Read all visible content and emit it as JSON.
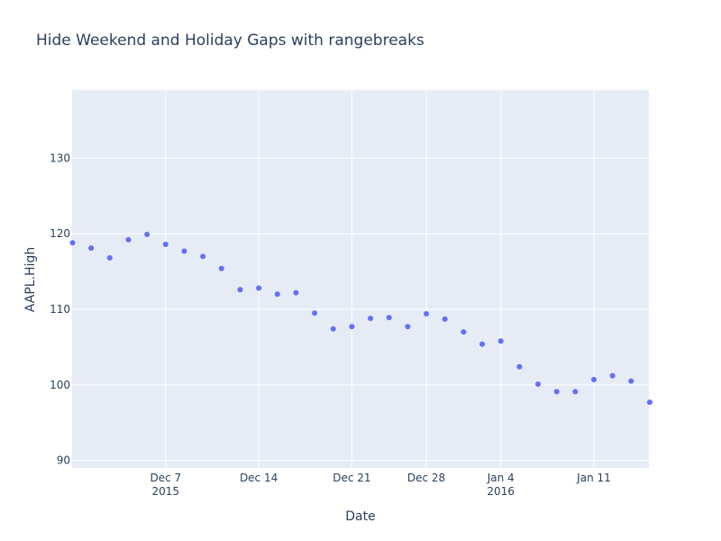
{
  "chart_data": {
    "type": "scatter",
    "title": "Hide Weekend and Holiday Gaps with rangebreaks",
    "xlabel": "Date",
    "ylabel": "AAPL.High",
    "ylim": [
      89,
      139
    ],
    "grid": true,
    "plot_bg": "#e5ecf6",
    "marker_color": "#636efa",
    "gridline_color": "#ffffff",
    "x_ticks": [
      {
        "date": "2015-12-07",
        "label": "Dec 7",
        "sublabel": "2015"
      },
      {
        "date": "2015-12-14",
        "label": "Dec 14",
        "sublabel": ""
      },
      {
        "date": "2015-12-21",
        "label": "Dec 21",
        "sublabel": ""
      },
      {
        "date": "2015-12-28",
        "label": "Dec 28",
        "sublabel": ""
      },
      {
        "date": "2016-01-04",
        "label": "Jan 4",
        "sublabel": "2016"
      },
      {
        "date": "2016-01-11",
        "label": "Jan 11",
        "sublabel": ""
      }
    ],
    "y_ticks": [
      90,
      100,
      110,
      120,
      130
    ],
    "points": [
      {
        "x": "2015-11-30",
        "y": 118.8
      },
      {
        "x": "2015-12-01",
        "y": 118.1
      },
      {
        "x": "2015-12-02",
        "y": 116.8
      },
      {
        "x": "2015-12-03",
        "y": 119.2
      },
      {
        "x": "2015-12-04",
        "y": 119.9
      },
      {
        "x": "2015-12-07",
        "y": 118.6
      },
      {
        "x": "2015-12-08",
        "y": 117.7
      },
      {
        "x": "2015-12-09",
        "y": 117.0
      },
      {
        "x": "2015-12-10",
        "y": 115.4
      },
      {
        "x": "2015-12-11",
        "y": 112.6
      },
      {
        "x": "2015-12-14",
        "y": 112.8
      },
      {
        "x": "2015-12-15",
        "y": 112.0
      },
      {
        "x": "2015-12-16",
        "y": 112.2
      },
      {
        "x": "2015-12-17",
        "y": 109.5
      },
      {
        "x": "2015-12-18",
        "y": 107.4
      },
      {
        "x": "2015-12-21",
        "y": 107.7
      },
      {
        "x": "2015-12-22",
        "y": 108.8
      },
      {
        "x": "2015-12-23",
        "y": 108.9
      },
      {
        "x": "2015-12-24",
        "y": 107.7
      },
      {
        "x": "2015-12-28",
        "y": 109.4
      },
      {
        "x": "2015-12-29",
        "y": 108.7
      },
      {
        "x": "2015-12-30",
        "y": 107.0
      },
      {
        "x": "2015-12-31",
        "y": 105.4
      },
      {
        "x": "2016-01-04",
        "y": 105.8
      },
      {
        "x": "2016-01-05",
        "y": 102.4
      },
      {
        "x": "2016-01-06",
        "y": 100.1
      },
      {
        "x": "2016-01-07",
        "y": 99.1
      },
      {
        "x": "2016-01-08",
        "y": 99.1
      },
      {
        "x": "2016-01-11",
        "y": 100.7
      },
      {
        "x": "2016-01-12",
        "y": 101.2
      },
      {
        "x": "2016-01-13",
        "y": 100.5
      },
      {
        "x": "2016-01-14",
        "y": 97.7
      }
    ]
  }
}
